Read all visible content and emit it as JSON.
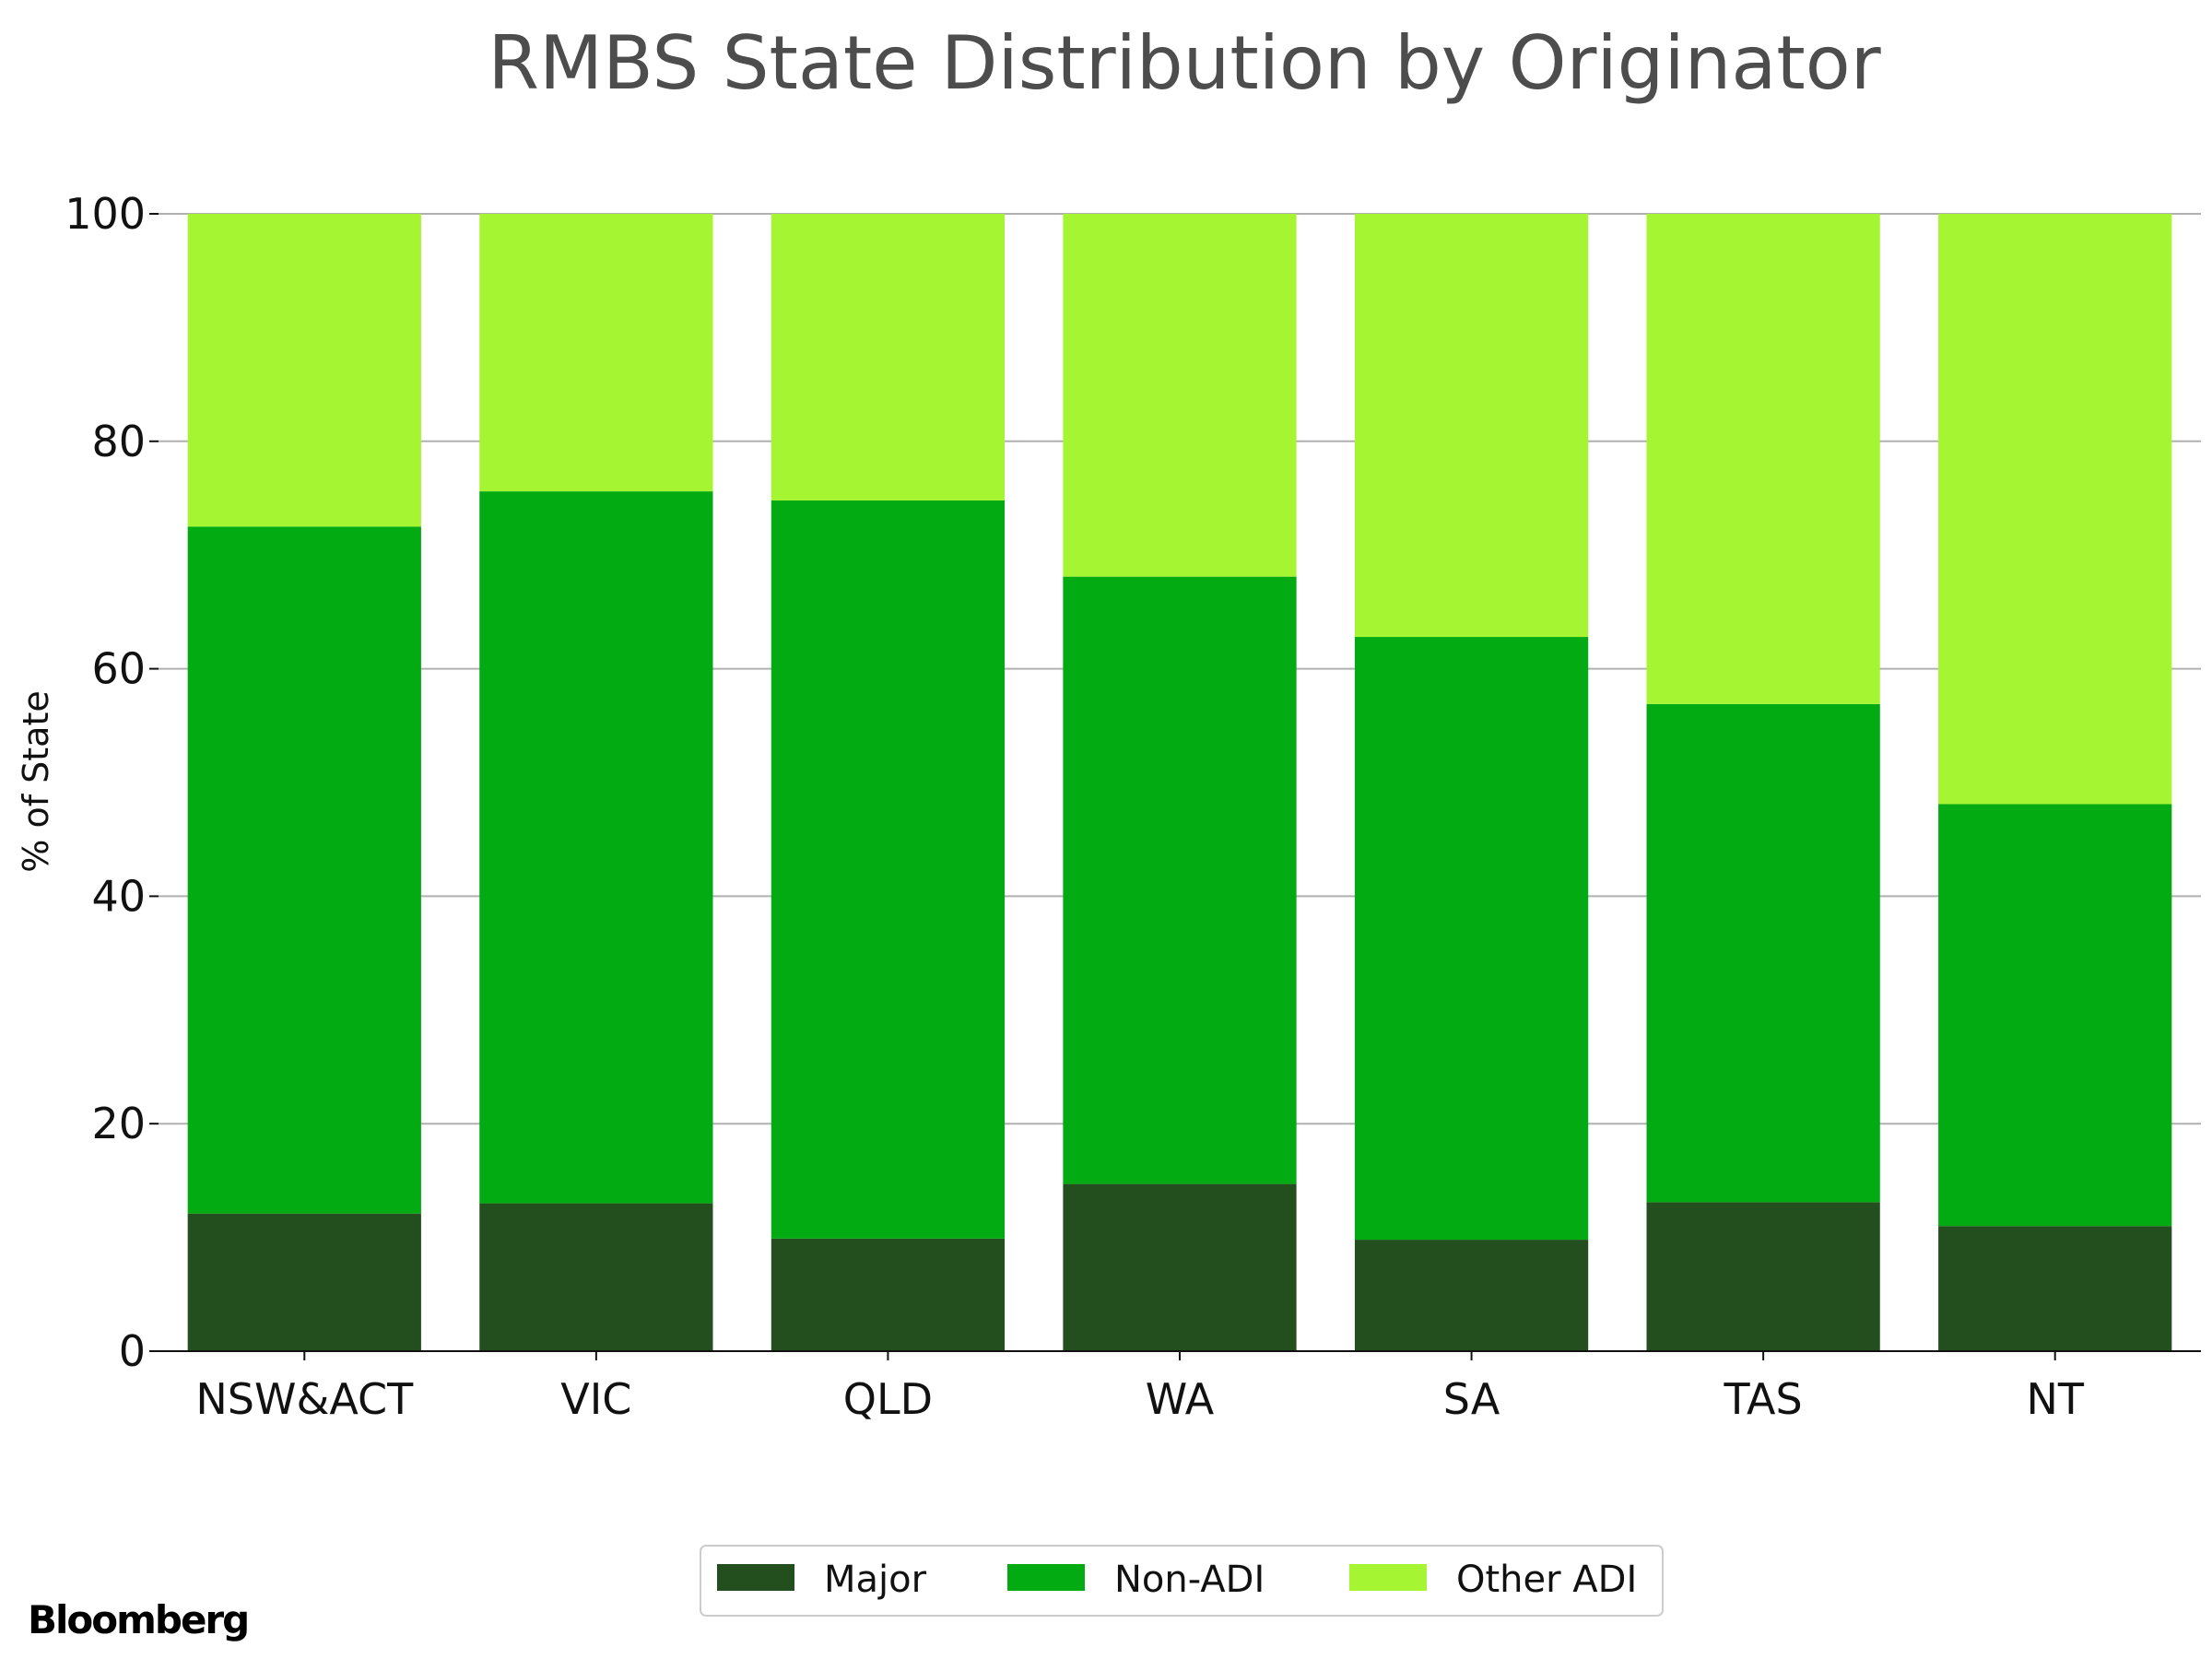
{
  "chart_data": {
    "type": "bar",
    "stacked": true,
    "title": "RMBS State Distribution by Originator",
    "ylabel": "% of State",
    "ylim": [
      0,
      100
    ],
    "yticks": [
      0,
      20,
      40,
      60,
      80,
      100
    ],
    "categories": [
      "NSW&ACT",
      "VIC",
      "QLD",
      "WA",
      "SA",
      "TAS",
      "NT"
    ],
    "series": [
      {
        "name": "Major",
        "color": "#234f1e",
        "values": [
          12.1,
          13.0,
          9.9,
          14.7,
          9.8,
          13.1,
          11.0
        ]
      },
      {
        "name": "Non-ADI",
        "color": "#03ab13",
        "values": [
          60.4,
          62.6,
          64.9,
          53.4,
          53.0,
          43.8,
          37.1
        ]
      },
      {
        "name": "Other ADI",
        "color": "#a6f533",
        "values": [
          27.5,
          24.4,
          25.2,
          31.9,
          37.2,
          43.1,
          51.9
        ]
      }
    ],
    "grid": "horizontal",
    "legend_position": "bottom-center"
  },
  "brand": "Bloomberg"
}
